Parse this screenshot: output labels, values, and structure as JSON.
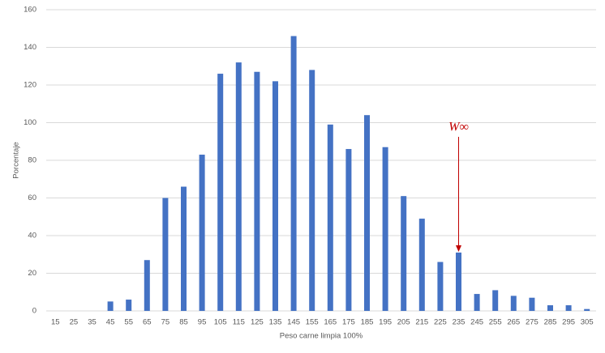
{
  "chart_data": {
    "type": "bar",
    "xlabel": "Peso carne limpia 100%",
    "ylabel": "Porcentaje",
    "annotation": "W∞",
    "categories": [
      "15",
      "25",
      "35",
      "45",
      "55",
      "65",
      "75",
      "85",
      "95",
      "105",
      "115",
      "125",
      "135",
      "145",
      "155",
      "165",
      "175",
      "185",
      "195",
      "205",
      "215",
      "225",
      "235",
      "245",
      "255",
      "265",
      "275",
      "285",
      "295",
      "305"
    ],
    "values": [
      0,
      0,
      0,
      5,
      6,
      27,
      60,
      66,
      83,
      126,
      132,
      127,
      122,
      146,
      128,
      99,
      86,
      104,
      87,
      61,
      49,
      26,
      31,
      9,
      11,
      8,
      7,
      3,
      3,
      1
    ],
    "color": "#4472c4",
    "ylim": [
      0,
      160
    ],
    "yticks": [
      0,
      20,
      40,
      60,
      80,
      100,
      120,
      140,
      160
    ],
    "grid": true
  }
}
